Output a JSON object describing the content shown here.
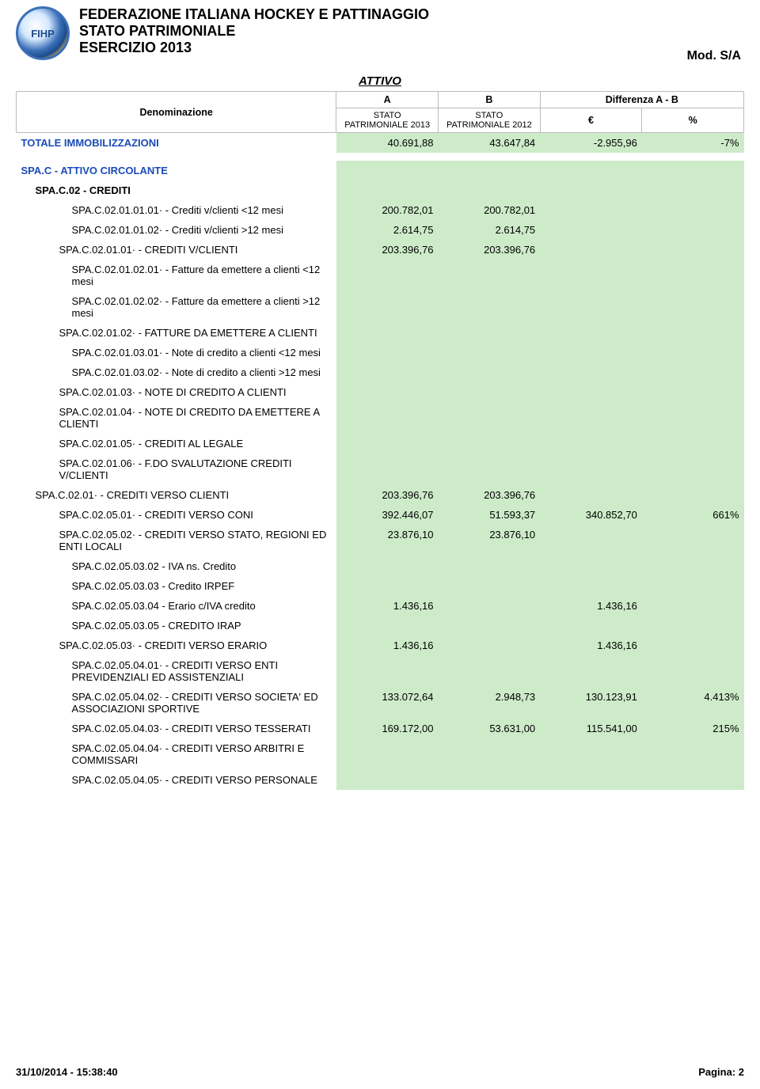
{
  "header": {
    "org": "FEDERAZIONE ITALIANA HOCKEY E PATTINAGGIO",
    "doc": "STATO PATRIMONIALE",
    "year": "ESERCIZIO 2013",
    "mod": "Mod. S/A",
    "logoText": "FIHP"
  },
  "tableHeader": {
    "section": "ATTIVO",
    "denom": "Denominazione",
    "colA": "A",
    "colB": "B",
    "diff": "Differenza A - B",
    "colA_sub": "STATO PATRIMONIALE 2013",
    "colB_sub": "STATO PATRIMONIALE 2012",
    "eur": "€",
    "pct": "%"
  },
  "rows": [
    {
      "type": "data",
      "label": "TOTALE IMMOBILIZZAZIONI",
      "class": "blue indent0",
      "green": true,
      "a": "40.691,88",
      "b": "43.647,84",
      "d": "-2.955,96",
      "p": "-7%"
    },
    {
      "type": "spacer"
    },
    {
      "type": "data",
      "label": "SPA.C - ATTIVO CIRCOLANTE",
      "class": "blue indent0",
      "green": true
    },
    {
      "type": "data",
      "label": "SPA.C.02 - CREDITI",
      "class": "bold indent1",
      "green": true
    },
    {
      "type": "data",
      "label": "SPA.C.02.01.01.01· - Crediti v/clienti <12 mesi",
      "class": "indent3",
      "green": true,
      "a": "200.782,01",
      "b": "200.782,01"
    },
    {
      "type": "data",
      "label": "SPA.C.02.01.01.02· - Crediti v/clienti >12 mesi",
      "class": "indent3",
      "green": true,
      "a": "2.614,75",
      "b": "2.614,75"
    },
    {
      "type": "data",
      "label": "SPA.C.02.01.01· - CREDITI V/CLIENTI",
      "class": "indent2",
      "green": true,
      "a": "203.396,76",
      "b": "203.396,76"
    },
    {
      "type": "data",
      "label": "SPA.C.02.01.02.01· - Fatture da emettere a clienti <12 mesi",
      "class": "indent3",
      "green": true
    },
    {
      "type": "data",
      "label": "SPA.C.02.01.02.02· - Fatture da emettere a clienti >12 mesi",
      "class": "indent3",
      "green": true
    },
    {
      "type": "data",
      "label": "SPA.C.02.01.02· - FATTURE DA EMETTERE A CLIENTI",
      "class": "indent2",
      "green": true
    },
    {
      "type": "data",
      "label": "SPA.C.02.01.03.01· - Note di credito a clienti <12 mesi",
      "class": "indent3",
      "green": true
    },
    {
      "type": "data",
      "label": "SPA.C.02.01.03.02· - Note di credito a clienti >12 mesi",
      "class": "indent3",
      "green": true
    },
    {
      "type": "data",
      "label": "SPA.C.02.01.03· - NOTE DI CREDITO A CLIENTI",
      "class": "indent2",
      "green": true
    },
    {
      "type": "data",
      "label": "SPA.C.02.01.04· - NOTE DI CREDITO DA EMETTERE A CLIENTI",
      "class": "indent2",
      "green": true
    },
    {
      "type": "data",
      "label": "SPA.C.02.01.05· - CREDITI AL LEGALE",
      "class": "indent2",
      "green": true
    },
    {
      "type": "data",
      "label": "SPA.C.02.01.06· - F.DO SVALUTAZIONE CREDITI V/CLIENTI",
      "class": "indent2",
      "green": true
    },
    {
      "type": "data",
      "label": "SPA.C.02.01· - CREDITI VERSO CLIENTI",
      "class": "indent1",
      "green": true,
      "a": "203.396,76",
      "b": "203.396,76"
    },
    {
      "type": "data",
      "label": "SPA.C.02.05.01· - CREDITI VERSO CONI",
      "class": "indent2",
      "green": true,
      "a": "392.446,07",
      "b": "51.593,37",
      "d": "340.852,70",
      "p": "661%"
    },
    {
      "type": "data",
      "label": "SPA.C.02.05.02· - CREDITI VERSO STATO, REGIONI ED ENTI LOCALI",
      "class": "indent2",
      "green": true,
      "a": "23.876,10",
      "b": "23.876,10"
    },
    {
      "type": "data",
      "label": "SPA.C.02.05.03.02 - IVA ns. Credito",
      "class": "indent3",
      "green": true
    },
    {
      "type": "data",
      "label": "SPA.C.02.05.03.03 - Credito IRPEF",
      "class": "indent3",
      "green": true
    },
    {
      "type": "data",
      "label": "SPA.C.02.05.03.04 - Erario c/IVA credito",
      "class": "indent3",
      "green": true,
      "a": "1.436,16",
      "d": "1.436,16"
    },
    {
      "type": "data",
      "label": "SPA.C.02.05.03.05 - CREDITO IRAP",
      "class": "indent3",
      "green": true
    },
    {
      "type": "data",
      "label": "SPA.C.02.05.03· - CREDITI VERSO ERARIO",
      "class": "indent2",
      "green": true,
      "a": "1.436,16",
      "d": "1.436,16"
    },
    {
      "type": "data",
      "label": "SPA.C.02.05.04.01· - CREDITI VERSO ENTI PREVIDENZIALI ED ASSISTENZIALI",
      "class": "indent3",
      "green": true
    },
    {
      "type": "data",
      "label": "SPA.C.02.05.04.02· - CREDITI VERSO SOCIETA' ED ASSOCIAZIONI SPORTIVE",
      "class": "indent3",
      "green": true,
      "a": "133.072,64",
      "b": "2.948,73",
      "d": "130.123,91",
      "p": "4.413%"
    },
    {
      "type": "data",
      "label": "SPA.C.02.05.04.03· - CREDITI VERSO TESSERATI",
      "class": "indent3",
      "green": true,
      "a": "169.172,00",
      "b": "53.631,00",
      "d": "115.541,00",
      "p": "215%"
    },
    {
      "type": "data",
      "label": "SPA.C.02.05.04.04· - CREDITI VERSO ARBITRI E COMMISSARI",
      "class": "indent3",
      "green": true
    },
    {
      "type": "data",
      "label": "SPA.C.02.05.04.05· - CREDITI VERSO PERSONALE",
      "class": "indent3",
      "green": true
    }
  ],
  "footer": {
    "timestamp": "31/10/2014 - 15:38:40",
    "page": "Pagina: 2"
  },
  "colors": {
    "green_bg": "#cdebc9",
    "blue_text": "#1a4bb7"
  }
}
